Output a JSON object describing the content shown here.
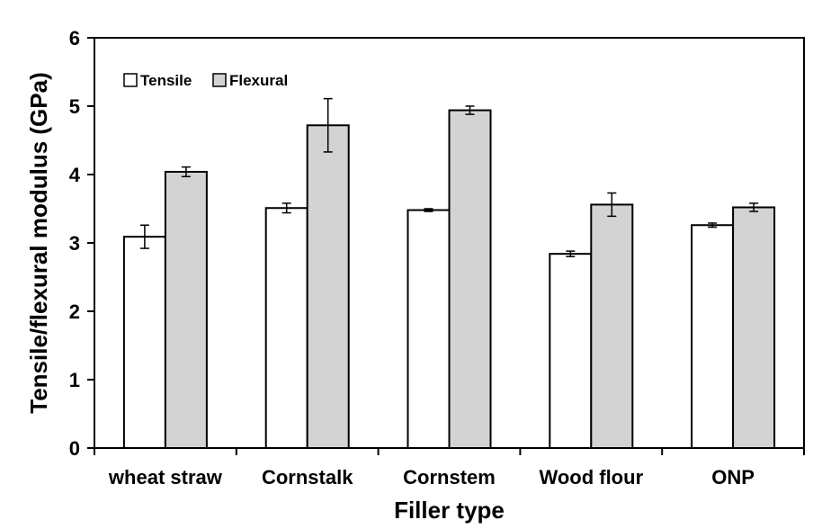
{
  "chart_data": {
    "type": "bar",
    "title": "",
    "xlabel": "Filler type",
    "ylabel": "Tensile/flexural modulus (GPa)",
    "categories": [
      "wheat straw",
      "Cornstalk",
      "Cornstem",
      "Wood flour",
      "ONP"
    ],
    "series": [
      {
        "name": "Tensile",
        "color": "#ffffff",
        "values": [
          3.09,
          3.51,
          3.48,
          2.84,
          3.26
        ],
        "errors": [
          0.17,
          0.07,
          0.02,
          0.04,
          0.03
        ]
      },
      {
        "name": "Flexural",
        "color": "#d3d3d3",
        "values": [
          4.04,
          4.72,
          4.94,
          3.56,
          3.52
        ],
        "errors": [
          0.07,
          0.39,
          0.06,
          0.17,
          0.06
        ]
      }
    ],
    "ylim": [
      0,
      6
    ],
    "yticks": [
      "0",
      "1",
      "2",
      "3",
      "4",
      "5",
      "6"
    ],
    "grid": false,
    "legend_position": "top-left"
  }
}
